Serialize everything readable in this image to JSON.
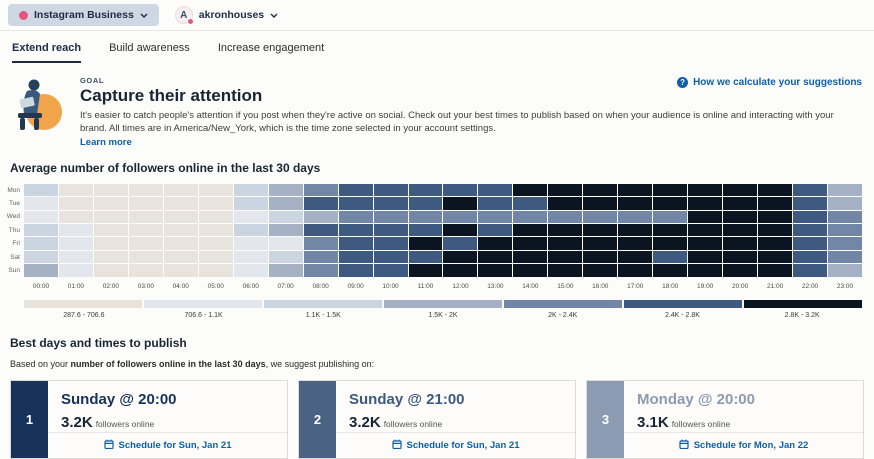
{
  "topbar": {
    "network_selector": {
      "label": "Instagram Business"
    },
    "account": {
      "initial": "A",
      "name": "akronhouses"
    }
  },
  "tabs": [
    {
      "label": "Extend reach",
      "active": true
    },
    {
      "label": "Build awareness",
      "active": false
    },
    {
      "label": "Increase engagement",
      "active": false
    }
  ],
  "goal": {
    "eyebrow": "GOAL",
    "title": "Capture their attention",
    "description": "It's easier to catch people's attention if you post when they're active on social. Check out your best times to publish based on when your audience is online and interacting with your brand. All times are in America/New_York, which is the time zone selected in your account settings.",
    "learn_more": "Learn more",
    "help_link": "How we calculate your suggestions"
  },
  "heatmap_section": {
    "title": "Average number of followers online in the last 30 days"
  },
  "best_times": {
    "title": "Best days and times to publish",
    "intro_prefix": "Based on your ",
    "intro_bold": "number of followers online in the last 30 days",
    "intro_suffix": ", we suggest publishing on:",
    "cards": [
      {
        "rank": "1",
        "title": "Sunday @ 20:00",
        "value": "3.2K",
        "value_suffix": "followers online",
        "schedule_label": "Schedule for Sun, Jan 21",
        "rail_color": "#17335b",
        "title_color": "#17335b"
      },
      {
        "rank": "2",
        "title": "Sunday @ 21:00",
        "value": "3.2K",
        "value_suffix": "followers online",
        "schedule_label": "Schedule for Sun, Jan 21",
        "rail_color": "#4a6385",
        "title_color": "#3d5a80"
      },
      {
        "rank": "3",
        "title": "Monday @ 20:00",
        "value": "3.1K",
        "value_suffix": "followers online",
        "schedule_label": "Schedule for Mon, Jan 22",
        "rail_color": "#8c9bb1",
        "title_color": "#8c9bb1"
      }
    ]
  },
  "chart_data": {
    "type": "heatmap",
    "title": "Average number of followers online in the last 30 days",
    "days": [
      "Mon",
      "Tue",
      "Wed",
      "Thu",
      "Fri",
      "Sat",
      "Sun"
    ],
    "hours": [
      "00:00",
      "01:00",
      "02:00",
      "03:00",
      "04:00",
      "05:00",
      "06:00",
      "07:00",
      "08:00",
      "09:00",
      "10:00",
      "11:00",
      "12:00",
      "13:00",
      "14:00",
      "15:00",
      "16:00",
      "17:00",
      "18:00",
      "19:00",
      "20:00",
      "21:00",
      "22:00",
      "23:00"
    ],
    "palette": [
      "#e8e3dc",
      "#e3e6ed",
      "#cbd5e1",
      "#a5b1c4",
      "#7187a5",
      "#3e5a80",
      "#0b1421"
    ],
    "level_ranges": [
      "287.6 - 706.6",
      "706.6 - 1.1K",
      "1.1K - 1.5K",
      "1.5K - 2K",
      "2K - 2.4K",
      "2.4K - 2.8K",
      "2.8K - 3.2K"
    ],
    "levels": [
      [
        3,
        1,
        1,
        1,
        1,
        1,
        3,
        4,
        5,
        6,
        6,
        6,
        6,
        6,
        7,
        7,
        7,
        7,
        7,
        7,
        7,
        7,
        6,
        4
      ],
      [
        2,
        1,
        1,
        1,
        1,
        1,
        3,
        4,
        6,
        6,
        6,
        6,
        7,
        6,
        6,
        7,
        7,
        7,
        7,
        7,
        7,
        7,
        6,
        4
      ],
      [
        2,
        1,
        1,
        1,
        1,
        1,
        2,
        3,
        4,
        5,
        5,
        5,
        5,
        5,
        5,
        5,
        5,
        5,
        5,
        7,
        7,
        7,
        6,
        5
      ],
      [
        3,
        2,
        1,
        1,
        1,
        1,
        3,
        4,
        6,
        6,
        6,
        6,
        7,
        6,
        7,
        7,
        7,
        7,
        7,
        7,
        7,
        7,
        6,
        5
      ],
      [
        3,
        2,
        1,
        1,
        1,
        1,
        2,
        2,
        5,
        6,
        6,
        7,
        6,
        7,
        7,
        7,
        7,
        7,
        7,
        7,
        7,
        7,
        6,
        5
      ],
      [
        3,
        2,
        1,
        1,
        1,
        1,
        2,
        3,
        5,
        6,
        6,
        6,
        7,
        7,
        7,
        7,
        7,
        7,
        6,
        7,
        7,
        7,
        6,
        5
      ],
      [
        4,
        2,
        1,
        1,
        1,
        1,
        2,
        4,
        5,
        6,
        6,
        7,
        7,
        7,
        7,
        7,
        7,
        7,
        7,
        7,
        7,
        7,
        6,
        4
      ]
    ]
  }
}
